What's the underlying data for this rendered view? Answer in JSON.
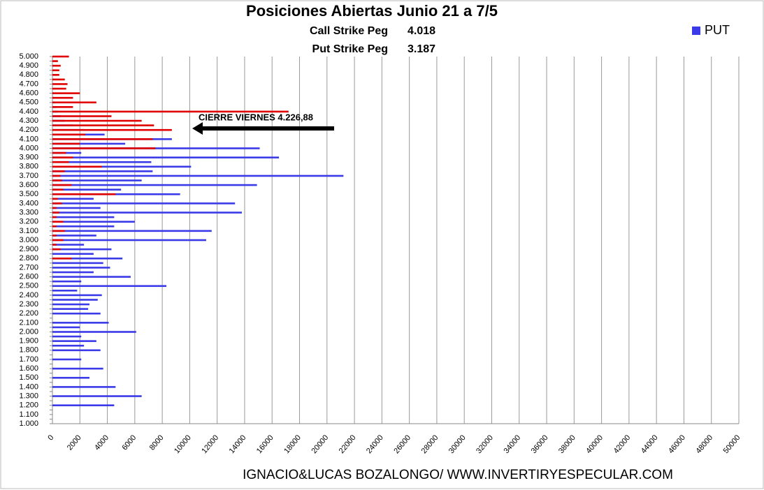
{
  "chart_data": {
    "type": "barh",
    "title": "Posiciones Abiertas Junio 21 a 7/5",
    "call_peg": {
      "label": "Call Strike Peg",
      "value": "4.018"
    },
    "put_peg": {
      "label": "Put Strike Peg",
      "value": "3.187"
    },
    "annotation": "CIERRE VIERNES 4.226,88",
    "footer": "IGNACIO&LUCAS BOZALONGO/ WWW.INVERTIRYESPECULAR.COM",
    "categories": [
      "1.000",
      null,
      "1.100",
      null,
      "1.200",
      null,
      "1.300",
      null,
      "1.400",
      null,
      "1.500",
      null,
      "1.600",
      null,
      "1.700",
      null,
      "1.800",
      null,
      "1.900",
      null,
      "2.000",
      null,
      "2.100",
      null,
      "2.200",
      null,
      "2.300",
      null,
      "2.400",
      null,
      "2.500",
      null,
      "2.600",
      null,
      "2.700",
      null,
      "2.800",
      null,
      "2.900",
      null,
      "3.000",
      null,
      "3.100",
      null,
      "3.200",
      null,
      "3.300",
      null,
      "3.400",
      null,
      "3.500",
      null,
      "3.600",
      null,
      "3.700",
      null,
      "3.800",
      null,
      "3.900",
      null,
      "4.000",
      null,
      "4.100",
      null,
      "4.200",
      null,
      "4.300",
      null,
      "4.400",
      null,
      "4.500",
      null,
      "4.600",
      null,
      "4.700",
      null,
      "4.800",
      null,
      "4.900",
      null,
      "5.000"
    ],
    "series": [
      {
        "name": "PUT",
        "color": "#3a3ae8",
        "values": [
          0,
          0,
          0,
          0,
          4500,
          0,
          6500,
          0,
          4600,
          0,
          2700,
          0,
          3700,
          0,
          2100,
          0,
          3500,
          2300,
          3200,
          2100,
          6100,
          2000,
          4100,
          0,
          3500,
          2600,
          2700,
          3300,
          3600,
          1800,
          8300,
          2100,
          5700,
          3000,
          4200,
          3700,
          5100,
          3000,
          4300,
          2300,
          11200,
          3200,
          11600,
          4500,
          6000,
          4500,
          13800,
          3500,
          13300,
          3000,
          9300,
          5000,
          14900,
          6500,
          21200,
          7300,
          10100,
          7200,
          16500,
          2100,
          15100,
          5300,
          8700,
          3800,
          2300,
          1500,
          900,
          600,
          400,
          300,
          200,
          100,
          100,
          0,
          0,
          0,
          0,
          0,
          0,
          0,
          0
        ]
      },
      {
        "color": "#e00000",
        "values": [
          0,
          0,
          0,
          0,
          0,
          0,
          0,
          0,
          0,
          0,
          0,
          0,
          0,
          0,
          0,
          0,
          0,
          0,
          0,
          0,
          0,
          0,
          0,
          0,
          0,
          0,
          0,
          0,
          0,
          0,
          0,
          0,
          0,
          0,
          0,
          0,
          1400,
          0,
          600,
          300,
          800,
          300,
          900,
          300,
          800,
          300,
          500,
          300,
          700,
          400,
          4600,
          800,
          1400,
          700,
          600,
          900,
          3600,
          1200,
          1500,
          1000,
          7500,
          2000,
          7300,
          2400,
          8700,
          7400,
          6500,
          4300,
          17200,
          1500,
          3200,
          1500,
          2000,
          1000,
          1100,
          900,
          500,
          500,
          600,
          400,
          1200
        ]
      }
    ],
    "xlim": [
      0,
      50000
    ],
    "xticks": [
      0,
      2000,
      4000,
      6000,
      8000,
      10000,
      12000,
      14000,
      16000,
      18000,
      20000,
      22000,
      24000,
      26000,
      28000,
      30000,
      32000,
      34000,
      36000,
      38000,
      40000,
      42000,
      44000,
      46000,
      48000,
      50000
    ],
    "grid": true,
    "legend": "top-right"
  }
}
